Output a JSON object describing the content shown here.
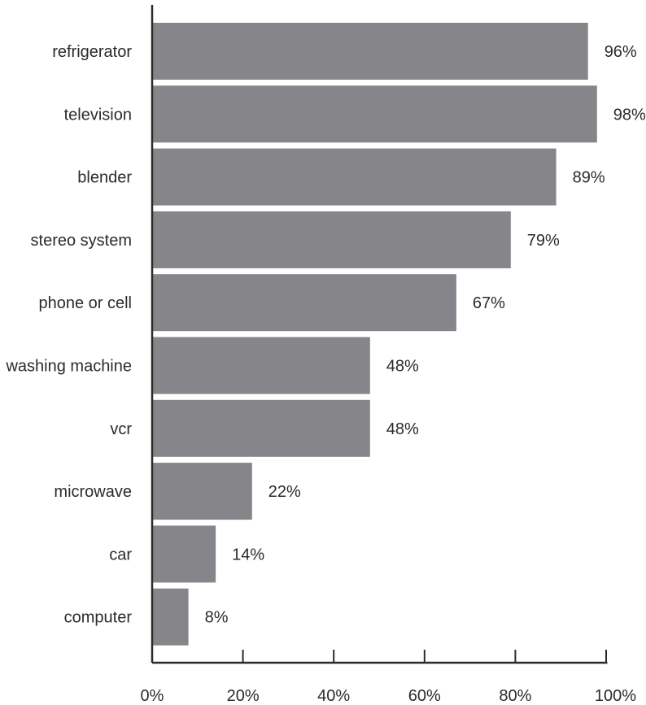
{
  "chart_data": {
    "type": "bar",
    "orientation": "horizontal",
    "title": "",
    "xlabel": "",
    "ylabel": "",
    "categories": [
      "refrigerator",
      "television",
      "blender",
      "stereo system",
      "phone or cell",
      "washing machine",
      "vcr",
      "microwave",
      "car",
      "computer"
    ],
    "values": [
      96,
      98,
      89,
      79,
      67,
      48,
      48,
      22,
      14,
      8
    ],
    "data_labels": [
      "96%",
      "98%",
      "89%",
      "79%",
      "67%",
      "48%",
      "48%",
      "22%",
      "14%",
      "8%"
    ],
    "xlim": [
      0,
      100
    ],
    "x_ticks": [
      0,
      20,
      40,
      60,
      80,
      100
    ],
    "x_tick_labels": [
      "0%",
      "20%",
      "40%",
      "60%",
      "80%",
      "100%"
    ],
    "grid": false,
    "legend": "none",
    "colors": {
      "bar": "#868589",
      "axis": "#2b2b2b",
      "text": "#2b2b2b",
      "background": "#ffffff"
    }
  }
}
